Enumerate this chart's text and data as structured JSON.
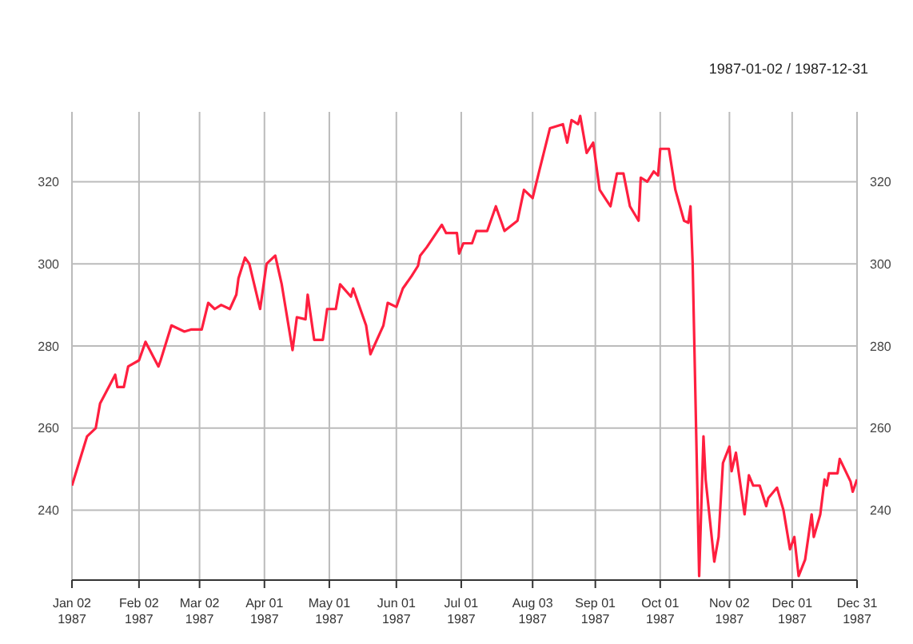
{
  "chart_data": {
    "type": "line",
    "subtitle": "1987-01-02 / 1987-12-31",
    "x": [
      "1987-01-02",
      "1987-01-09",
      "1987-01-13",
      "1987-01-15",
      "1987-01-19",
      "1987-01-22",
      "1987-01-23",
      "1987-01-26",
      "1987-01-28",
      "1987-02-02",
      "1987-02-05",
      "1987-02-09",
      "1987-02-11",
      "1987-02-12",
      "1987-02-17",
      "1987-02-23",
      "1987-02-26",
      "1987-03-03",
      "1987-03-06",
      "1987-03-09",
      "1987-03-12",
      "1987-03-16",
      "1987-03-19",
      "1987-03-20",
      "1987-03-23",
      "1987-03-25",
      "1987-03-30",
      "1987-04-02",
      "1987-04-06",
      "1987-04-09",
      "1987-04-14",
      "1987-04-16",
      "1987-04-20",
      "1987-04-21",
      "1987-04-24",
      "1987-04-28",
      "1987-04-30",
      "1987-05-04",
      "1987-05-06",
      "1987-05-11",
      "1987-05-12",
      "1987-05-14",
      "1987-05-18",
      "1987-05-20",
      "1987-05-26",
      "1987-05-28",
      "1987-06-01",
      "1987-06-04",
      "1987-06-08",
      "1987-06-11",
      "1987-06-12",
      "1987-06-15",
      "1987-06-22",
      "1987-06-24",
      "1987-06-29",
      "1987-06-30",
      "1987-07-02",
      "1987-07-06",
      "1987-07-08",
      "1987-07-13",
      "1987-07-17",
      "1987-07-21",
      "1987-07-27",
      "1987-07-30",
      "1987-08-03",
      "1987-08-06",
      "1987-08-11",
      "1987-08-17",
      "1987-08-19",
      "1987-08-21",
      "1987-08-24",
      "1987-08-25",
      "1987-08-28",
      "1987-08-31",
      "1987-09-03",
      "1987-09-08",
      "1987-09-11",
      "1987-09-14",
      "1987-09-17",
      "1987-09-21",
      "1987-09-22",
      "1987-09-25",
      "1987-09-28",
      "1987-09-30",
      "1987-10-01",
      "1987-10-05",
      "1987-10-08",
      "1987-10-12",
      "1987-10-14",
      "1987-10-15",
      "1987-10-16",
      "1987-10-19",
      "1987-10-21",
      "1987-10-22",
      "1987-10-26",
      "1987-10-28",
      "1987-10-30",
      "1987-11-02",
      "1987-11-03",
      "1987-11-05",
      "1987-11-09",
      "1987-11-11",
      "1987-11-13",
      "1987-11-16",
      "1987-11-19",
      "1987-11-20",
      "1987-11-24",
      "1987-11-27",
      "1987-11-30",
      "1987-12-02",
      "1987-12-04",
      "1987-12-07",
      "1987-12-10",
      "1987-12-11",
      "1987-12-14",
      "1987-12-16",
      "1987-12-17",
      "1987-12-18",
      "1987-12-22",
      "1987-12-23",
      "1987-12-28",
      "1987-12-29",
      "1987-12-31"
    ],
    "series": [
      {
        "color": "#ff1f3f",
        "values": [
          246,
          258,
          260,
          266,
          270,
          273,
          270,
          270,
          275,
          276.5,
          281,
          277,
          275,
          276.5,
          285,
          283.5,
          284,
          284,
          290.5,
          289,
          290,
          289,
          292.5,
          296.5,
          301.5,
          300,
          289,
          300,
          302,
          295,
          279,
          287,
          286.5,
          292.5,
          281.5,
          281.5,
          289,
          289,
          295,
          292,
          294,
          291,
          285,
          278,
          285,
          290.5,
          289.5,
          294,
          297,
          299.5,
          302,
          304,
          309.5,
          307.5,
          307.5,
          302.5,
          305,
          305,
          308,
          308,
          314,
          308,
          310.5,
          318,
          316,
          322.5,
          333,
          334,
          329.5,
          335,
          334,
          336,
          327,
          329.5,
          318,
          314,
          322,
          322,
          314,
          310.5,
          321,
          320,
          322.5,
          321.5,
          328,
          328,
          318,
          310.5,
          310,
          314,
          300,
          224,
          258,
          247.5,
          227.5,
          233.5,
          251.5,
          255.5,
          249.5,
          254,
          239,
          248.5,
          246,
          246,
          241,
          243,
          245.5,
          240,
          230.5,
          233.5,
          224,
          228,
          239,
          233.5,
          239,
          247.5,
          246,
          249,
          249,
          252.5,
          247,
          244.5,
          247.5
        ]
      }
    ],
    "xlim": [
      "1987-01-02",
      "1987-12-31"
    ],
    "xticks": [
      {
        "value": "1987-01-02",
        "label": "Jan 02\n1987"
      },
      {
        "value": "1987-02-02",
        "label": "Feb 02\n1987"
      },
      {
        "value": "1987-03-02",
        "label": "Mar 02\n1987"
      },
      {
        "value": "1987-04-01",
        "label": "Apr 01\n1987"
      },
      {
        "value": "1987-05-01",
        "label": "May 01\n1987"
      },
      {
        "value": "1987-06-01",
        "label": "Jun 01\n1987"
      },
      {
        "value": "1987-07-01",
        "label": "Jul 01\n1987"
      },
      {
        "value": "1987-08-03",
        "label": "Aug 03\n1987"
      },
      {
        "value": "1987-09-01",
        "label": "Sep 01\n1987"
      },
      {
        "value": "1987-10-01",
        "label": "Oct 01\n1987"
      },
      {
        "value": "1987-11-02",
        "label": "Nov 02\n1987"
      },
      {
        "value": "1987-12-01",
        "label": "Dec 01\n1987"
      },
      {
        "value": "1987-12-31",
        "label": "Dec 31\n1987"
      }
    ],
    "ylim": [
      223,
      337
    ],
    "yticks": [
      240,
      260,
      280,
      300,
      320
    ],
    "y2lim": [
      223,
      337
    ],
    "y2ticks": [
      240,
      260,
      280,
      300,
      320
    ],
    "grid": true
  }
}
